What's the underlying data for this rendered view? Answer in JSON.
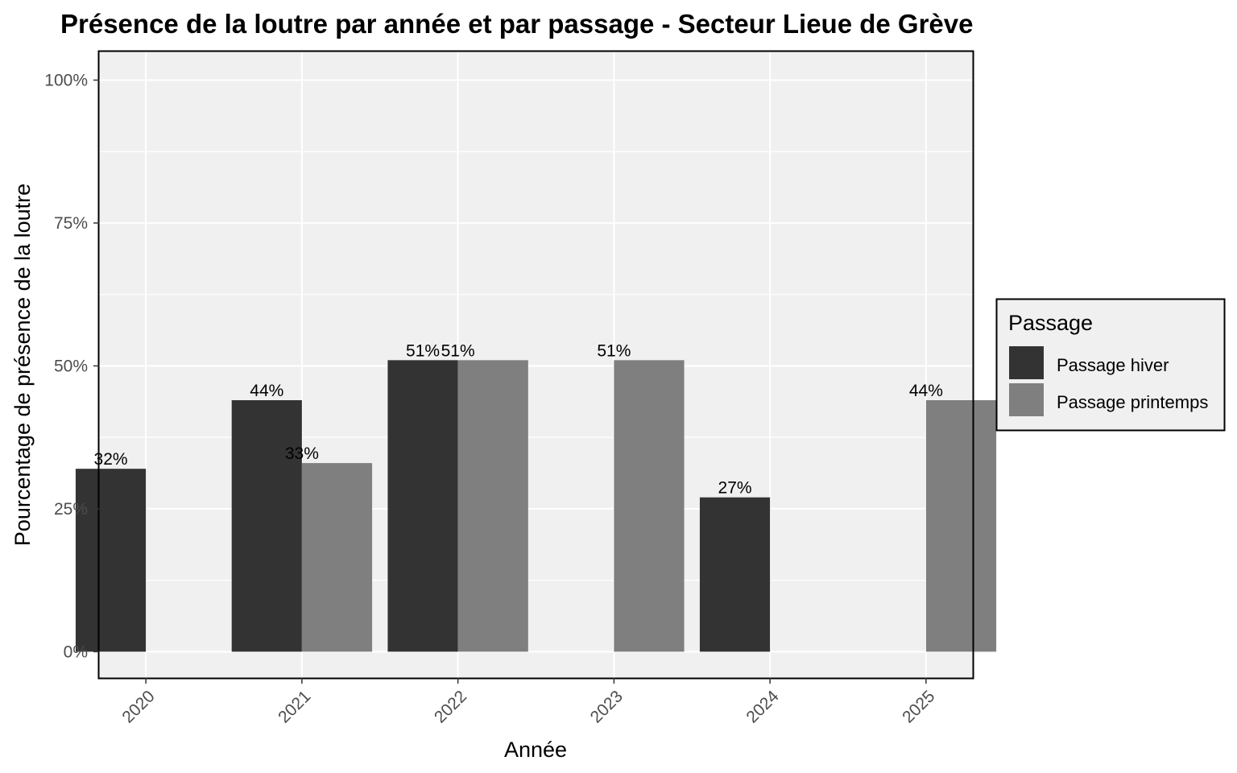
{
  "chart_data": {
    "type": "bar",
    "title": "Présence de la loutre par année et par passage - Secteur Lieue de Grève",
    "xlabel": "Année",
    "ylabel": "Pourcentage de présence de la loutre",
    "categories": [
      "2020",
      "2021",
      "2022",
      "2023",
      "2024",
      "2025"
    ],
    "series": [
      {
        "name": "Passage hiver",
        "color": "#333333",
        "values": [
          32,
          44,
          51,
          null,
          27,
          null
        ],
        "labels": [
          "32%",
          "44%",
          "51%",
          null,
          "27%",
          null
        ]
      },
      {
        "name": "Passage printemps",
        "color": "#7f7f7f",
        "values": [
          null,
          33,
          51,
          51,
          null,
          44
        ],
        "labels": [
          null,
          "33%",
          "51%",
          "51%",
          null,
          "44%"
        ]
      }
    ],
    "ylim": [
      -4.6,
      105
    ],
    "yticks": [
      0,
      25,
      50,
      75,
      100
    ],
    "ytick_labels": [
      "0%",
      "25%",
      "50%",
      "75%",
      "100%"
    ],
    "legend": {
      "title": "Passage",
      "position": "right"
    },
    "grid": true,
    "panel_background": "#f0f0f0"
  }
}
